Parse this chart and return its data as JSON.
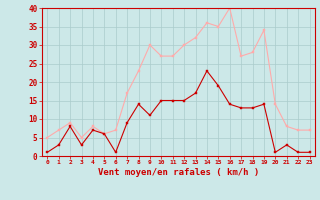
{
  "hours": [
    0,
    1,
    2,
    3,
    4,
    5,
    6,
    7,
    8,
    9,
    10,
    11,
    12,
    13,
    14,
    15,
    16,
    17,
    18,
    19,
    20,
    21,
    22,
    23
  ],
  "vent_moyen": [
    1,
    3,
    8,
    3,
    7,
    6,
    1,
    9,
    14,
    11,
    15,
    15,
    15,
    17,
    23,
    19,
    14,
    13,
    13,
    14,
    1,
    3,
    1,
    1
  ],
  "rafales": [
    5,
    7,
    9,
    5,
    8,
    6,
    7,
    17,
    23,
    30,
    27,
    27,
    30,
    32,
    36,
    35,
    40,
    27,
    28,
    34,
    14,
    8,
    7,
    7
  ],
  "line_color_moyen": "#cc0000",
  "line_color_rafales": "#ffaaaa",
  "marker_color_moyen": "#cc0000",
  "marker_color_rafales": "#ffaaaa",
  "background_color": "#cce8e8",
  "grid_color": "#aacccc",
  "xlabel": "Vent moyen/en rafales ( km/h )",
  "xlabel_color": "#cc0000",
  "tick_color": "#cc0000",
  "ylim": [
    0,
    40
  ],
  "yticks": [
    0,
    5,
    10,
    15,
    20,
    25,
    30,
    35,
    40
  ],
  "spine_color": "#cc0000",
  "fig_width": 3.2,
  "fig_height": 2.0,
  "dpi": 100
}
